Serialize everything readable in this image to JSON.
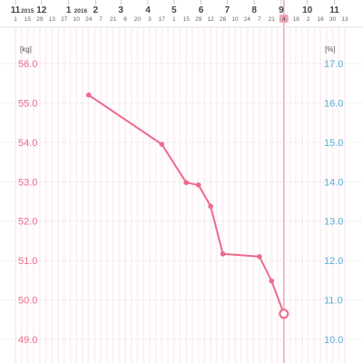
{
  "colors": {
    "line": "#ee6a8c",
    "left_axis": "#ee6a8c",
    "right_axis": "#5ab0d6",
    "grid": "#dcdcdc",
    "weekend_band": "#fdf0f4",
    "today_highlight": "#f2a6b9",
    "header_text": "#444444",
    "day_text": "#666666"
  },
  "header": {
    "months": [
      {
        "id": "nov2015",
        "label": "11",
        "year": "2015",
        "days": [
          "1",
          "15",
          "29"
        ]
      },
      {
        "id": "dec2015",
        "label": "12",
        "year": "",
        "days": [
          "13",
          "27"
        ]
      },
      {
        "id": "jan2016",
        "label": "1",
        "year": "2016",
        "days": [
          "10",
          "24"
        ]
      },
      {
        "id": "feb2016",
        "label": "2",
        "year": "",
        "days": [
          "7",
          "21"
        ]
      },
      {
        "id": "mar2016",
        "label": "3",
        "year": "",
        "days": [
          "6",
          "20"
        ]
      },
      {
        "id": "apr2016",
        "label": "4",
        "year": "",
        "days": [
          "3",
          "17"
        ]
      },
      {
        "id": "may2016",
        "label": "5",
        "year": "",
        "days": [
          "1",
          "15",
          "29"
        ]
      },
      {
        "id": "jun2016",
        "label": "6",
        "year": "",
        "days": [
          "12",
          "26"
        ]
      },
      {
        "id": "jul2016",
        "label": "7",
        "year": "",
        "days": [
          "10",
          "24"
        ]
      },
      {
        "id": "aug2016",
        "label": "8",
        "year": "",
        "days": [
          "7",
          "21"
        ]
      },
      {
        "id": "sep2016",
        "label": "9",
        "year": "",
        "days": [
          "4",
          "18"
        ]
      },
      {
        "id": "oct2016",
        "label": "10",
        "year": "",
        "days": [
          "2",
          "16",
          "30"
        ]
      },
      {
        "id": "nov2016",
        "label": "11",
        "year": "",
        "days": [
          "13"
        ]
      }
    ],
    "selected_day": "4"
  },
  "chart_data": {
    "type": "line",
    "y_left": {
      "unit": "[kg]",
      "ticks": [
        "56.0",
        "55.0",
        "54.0",
        "53.0",
        "52.0",
        "51.0",
        "50.0",
        "49.0"
      ],
      "range": [
        49.0,
        56.0
      ]
    },
    "y_right": {
      "unit": "[%]",
      "ticks": [
        "17.0",
        "16.0",
        "15.0",
        "14.0",
        "13.0",
        "12.0",
        "11.0",
        "10.0"
      ],
      "range": [
        10.0,
        17.0
      ]
    },
    "x_range": [
      "2015-11-01",
      "2016-11-13"
    ],
    "grid": true,
    "series": [
      {
        "axis": "left",
        "points": [
          {
            "x": "2016-01-24",
            "y": 55.2
          },
          {
            "x": "2016-04-17",
            "y": 53.95
          },
          {
            "x": "2016-05-15",
            "y": 52.98
          },
          {
            "x": "2016-05-29",
            "y": 52.92
          },
          {
            "x": "2016-06-12",
            "y": 52.38
          },
          {
            "x": "2016-06-26",
            "y": 51.17
          },
          {
            "x": "2016-08-07",
            "y": 51.1
          },
          {
            "x": "2016-08-21",
            "y": 50.48
          },
          {
            "x": "2016-09-04",
            "y": 49.65
          }
        ],
        "last_point_hollow": true
      }
    ],
    "today": "2016-09-04"
  }
}
